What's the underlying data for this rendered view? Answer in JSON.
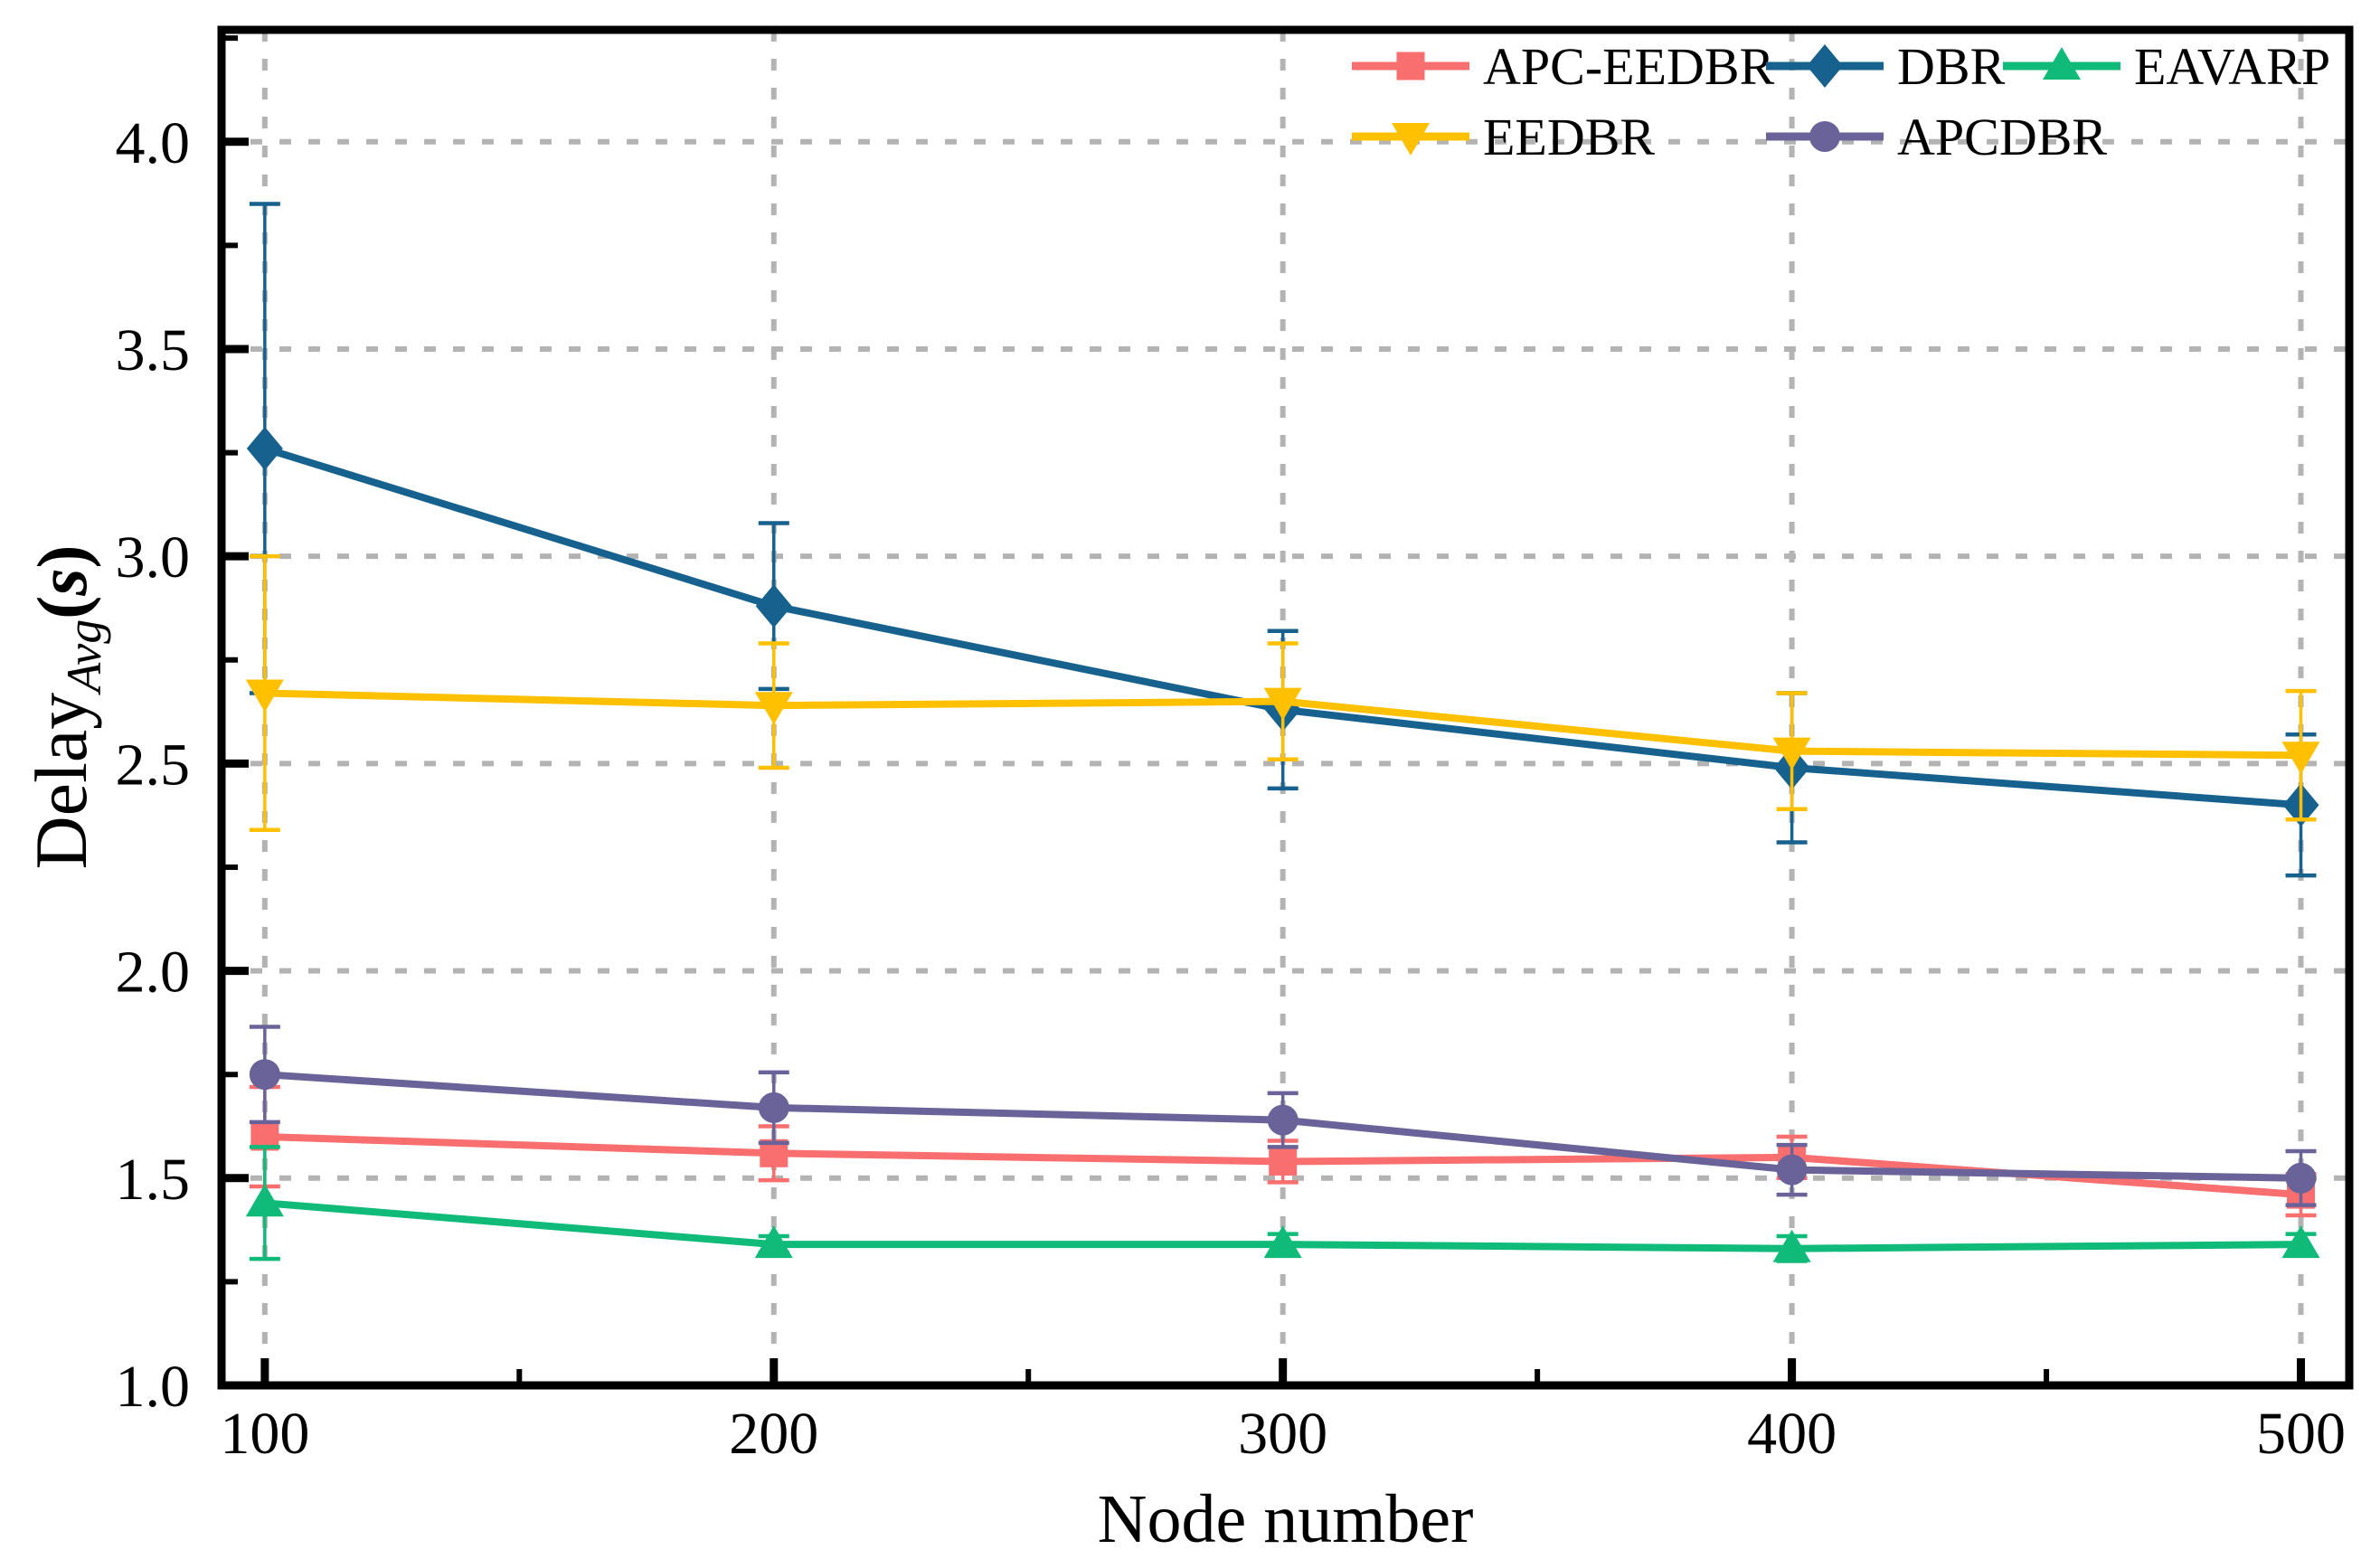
{
  "figure": {
    "xlabel": "Node number",
    "ylabel_main": "Delay",
    "ylabel_sub": "Avg",
    "ylabel_unit_open": "(",
    "ylabel_unit": "s",
    "ylabel_unit_close": ")"
  },
  "chart_data": {
    "type": "line",
    "x": [
      100,
      200,
      300,
      400,
      500
    ],
    "xlabel": "Node number",
    "ylabel": "Delay_Avg(s)",
    "xlim": [
      91.5,
      509.5
    ],
    "ylim": [
      1.0,
      4.27
    ],
    "x_major_ticks": [
      100,
      200,
      300,
      400,
      500
    ],
    "x_minor_ticks": [
      150,
      250,
      350,
      450
    ],
    "y_major_ticks": [
      1.0,
      1.5,
      2.0,
      2.5,
      3.0,
      3.5,
      4.0
    ],
    "y_minor_step": 0.25,
    "grid": true,
    "grid_color": "#b3b3b3",
    "frame_color": "#000000",
    "legend_position": "top-right-inside",
    "legend_rows": [
      [
        "APC-EEDBR",
        "DBR",
        "EAVARP"
      ],
      [
        "EEDBR",
        "APCDBR"
      ]
    ],
    "series": [
      {
        "name": "APC-EEDBR",
        "color": "#F96E6E",
        "marker": "square",
        "values": [
          1.6,
          1.56,
          1.54,
          1.55,
          1.46
        ],
        "errors": [
          0.12,
          0.065,
          0.05,
          0.05,
          0.05
        ]
      },
      {
        "name": "DBR",
        "color": "#16618E",
        "marker": "diamond",
        "values": [
          3.26,
          2.88,
          2.63,
          2.49,
          2.4
        ],
        "errors": [
          0.59,
          0.2,
          0.19,
          0.18,
          0.17
        ]
      },
      {
        "name": "EAVARP",
        "color": "#10BA78",
        "marker": "triangle-up",
        "values": [
          1.44,
          1.34,
          1.34,
          1.33,
          1.34
        ],
        "errors": [
          0.135,
          0.02,
          0.025,
          0.03,
          0.025
        ]
      },
      {
        "name": "EEDBR",
        "color": "#FFC000",
        "marker": "triangle-down",
        "values": [
          2.67,
          2.64,
          2.65,
          2.53,
          2.52
        ],
        "errors": [
          0.33,
          0.15,
          0.14,
          0.14,
          0.155
        ]
      },
      {
        "name": "APCDBR",
        "color": "#6A6399",
        "marker": "circle",
        "values": [
          1.75,
          1.67,
          1.64,
          1.52,
          1.5
        ],
        "errors": [
          0.115,
          0.085,
          0.065,
          0.06,
          0.065
        ]
      }
    ]
  }
}
